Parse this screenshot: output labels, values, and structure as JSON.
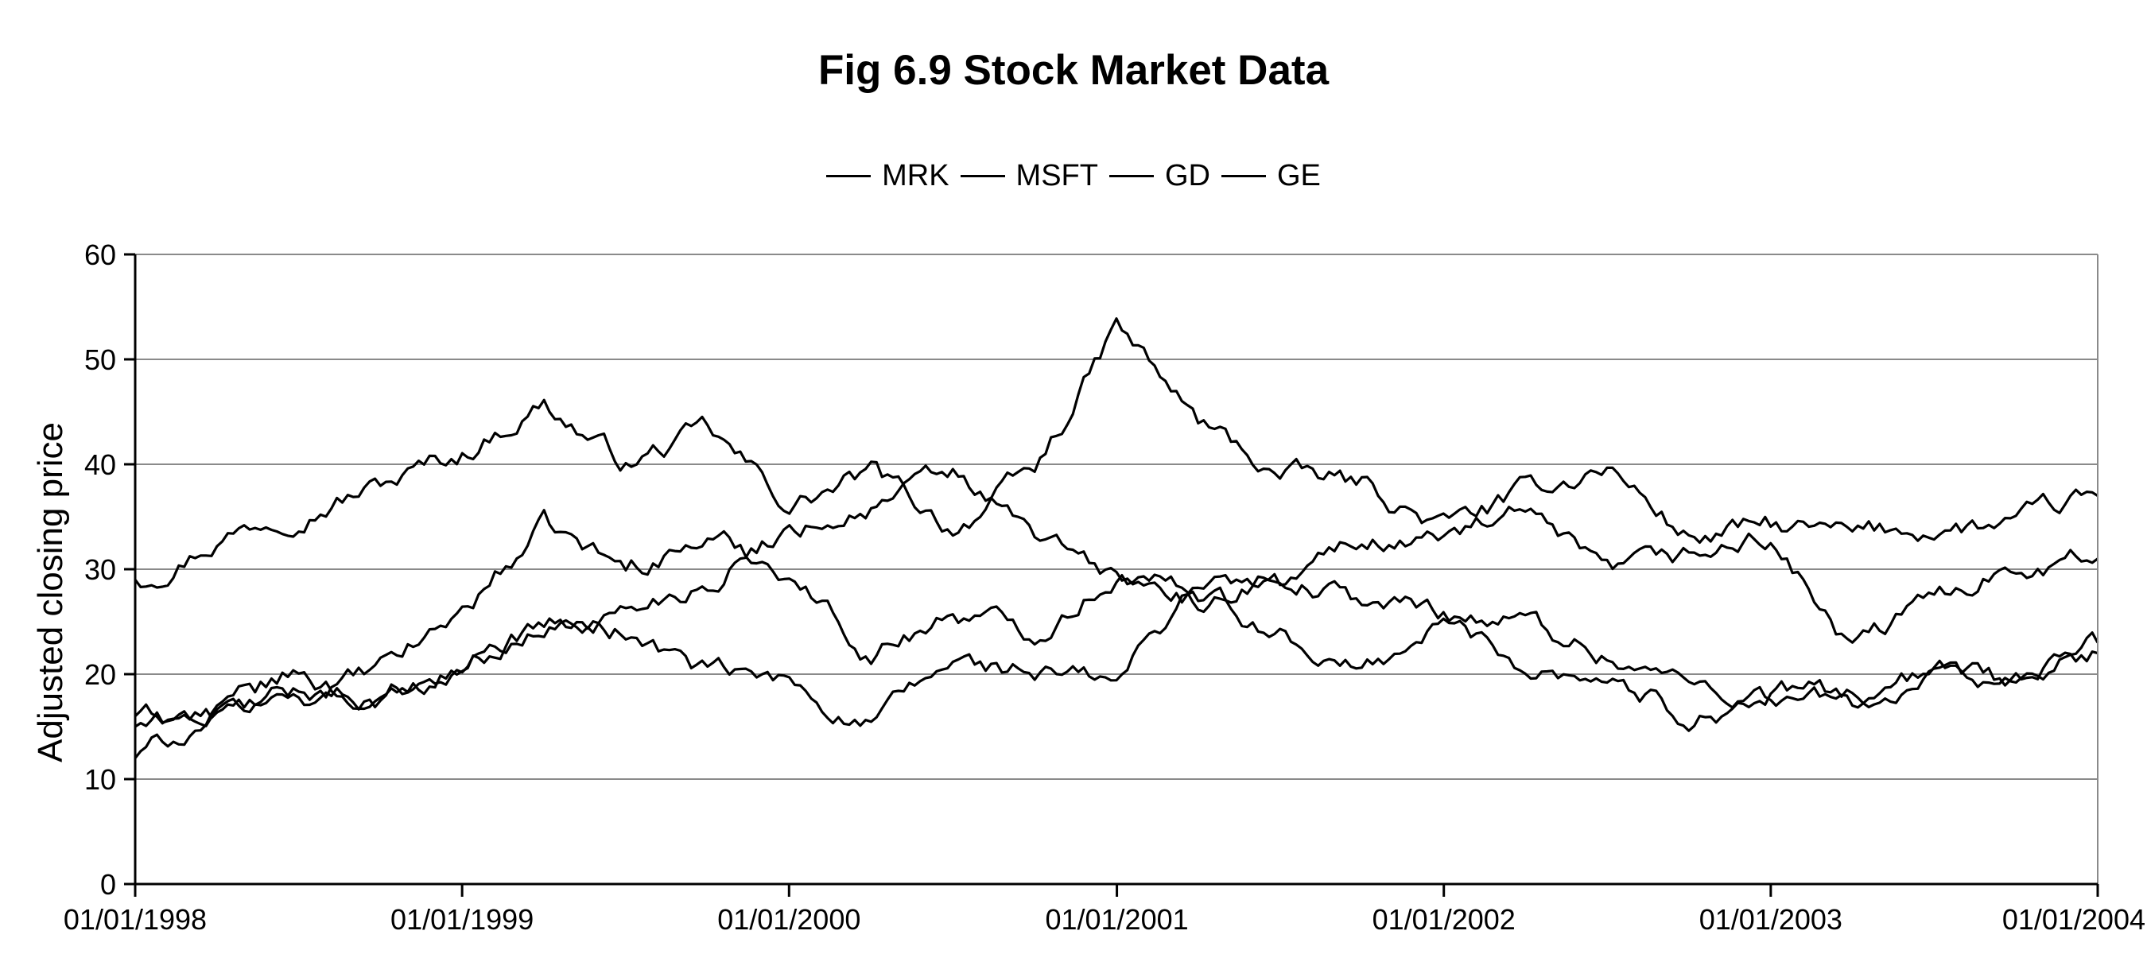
{
  "chart_data": {
    "type": "line",
    "title": "Fig 6.9 Stock Market Data",
    "xlabel": "",
    "ylabel": "Adjusted closing price",
    "xlim": [
      "01/01/1998",
      "01/01/2004"
    ],
    "ylim": [
      0,
      60
    ],
    "x_ticks": [
      "01/01/1998",
      "01/01/1999",
      "01/01/2000",
      "01/01/2001",
      "01/01/2002",
      "01/01/2003",
      "01/01/2004"
    ],
    "y_ticks": [
      0,
      10,
      20,
      30,
      40,
      50,
      60
    ],
    "grid": "horizontal",
    "legend": "top-center",
    "series_color": "#000000",
    "grid_color": "#8a8a8a",
    "x_dates": [
      "1998-01-01",
      "1998-04-01",
      "1998-07-01",
      "1998-10-01",
      "1999-01-01",
      "1999-04-01",
      "1999-07-01",
      "1999-10-01",
      "2000-01-01",
      "2000-04-01",
      "2000-07-01",
      "2000-10-01",
      "2001-01-01",
      "2001-04-01",
      "2001-07-01",
      "2001-10-01",
      "2002-01-01",
      "2002-04-01",
      "2002-07-01",
      "2002-10-01",
      "2003-01-01",
      "2003-04-01",
      "2003-07-01",
      "2003-10-01",
      "2004-01-01"
    ],
    "series": [
      {
        "name": "MRK",
        "values": [
          29,
          33,
          36,
          38,
          41,
          46,
          40,
          43,
          36,
          39,
          34,
          39,
          53,
          44,
          39,
          38,
          34,
          37,
          40,
          33,
          34,
          33,
          34,
          34,
          37
        ]
      },
      {
        "name": "MSFT",
        "values": [
          16,
          16,
          18,
          20,
          26,
          34,
          30,
          33,
          30,
          22,
          26,
          24,
          30,
          27,
          30,
          27,
          26,
          25,
          22,
          19,
          18,
          17,
          19,
          19,
          22
        ]
      },
      {
        "name": "GD",
        "values": [
          12,
          16,
          20,
          17,
          21,
          25,
          24,
          20,
          19,
          15,
          21,
          20,
          19,
          29,
          28,
          33,
          33,
          35,
          29,
          31,
          33,
          22,
          27,
          31,
          31
        ]
      },
      {
        "name": "GE",
        "values": [
          15,
          16,
          18,
          18,
          21,
          24,
          26,
          29,
          34,
          36,
          39,
          33,
          29,
          27,
          24,
          20,
          25,
          21,
          20,
          16,
          18,
          18,
          20,
          20,
          23
        ]
      }
    ]
  }
}
